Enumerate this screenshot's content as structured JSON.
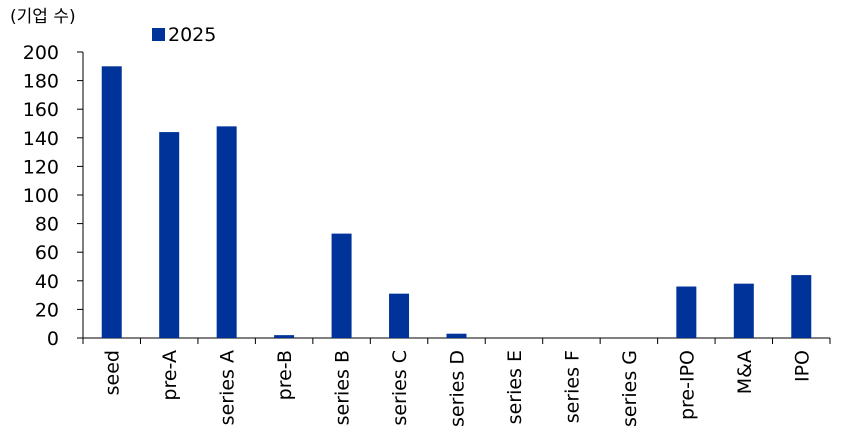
{
  "chart_data": {
    "type": "bar",
    "unit_label": "(기업 수)",
    "categories": [
      "seed",
      "pre-A",
      "series A",
      "pre-B",
      "series B",
      "series C",
      "series D",
      "series E",
      "series F",
      "series G",
      "pre-IPO",
      "M&A",
      "IPO"
    ],
    "series": [
      {
        "name": "2025",
        "values": [
          190,
          144,
          148,
          2,
          73,
          31,
          3,
          0,
          0,
          0,
          36,
          38,
          44
        ],
        "color": "#003399"
      }
    ],
    "ylim": [
      0,
      200
    ],
    "yticks": [
      0,
      20,
      40,
      60,
      80,
      100,
      120,
      140,
      160,
      180,
      200
    ],
    "grid": false,
    "legend": "top-left"
  }
}
